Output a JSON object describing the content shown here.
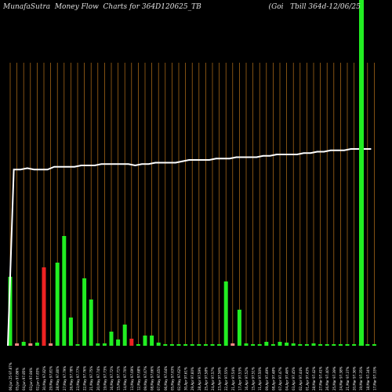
{
  "header": {
    "title": "MunafaSutra  Money Flow  Charts for 364D120625_TB                              (Goi   Tbill 364d-12/06/25                                            ) MunafaSutra.com"
  },
  "colors": {
    "background": "#000000",
    "grid": "#b8721a",
    "up": "#22ee22",
    "down": "#ee2222",
    "neutral": "#ff8888",
    "line": "#ffffff",
    "label": "#ffffff"
  },
  "chart_data": {
    "type": "bar",
    "title": "MunafaSutra  Money Flow  Charts for 364D120625_TB (Goi Tbill 364d-12/06/25) MunafaSutra.com",
    "categories": [
      "06,Jun 25 97.87%",
      "05,Jun 97.86%",
      "04,Jun 97.85%",
      "03,Jun 97.84%",
      "02,Jun 97.83%",
      "30,May 97.82%",
      "29,May 97.81%",
      "28,May 97.80%",
      "27,May 97.79%",
      "26,May 97.78%",
      "23,May 97.77%",
      "22,May 97.76%",
      "21,May 97.75%",
      "20,May 97.74%",
      "19,May 97.73%",
      "16,May 97.72%",
      "15,May 97.71%",
      "14,May 97.70%",
      "13,May 97.69%",
      "12,May 97.68%",
      "09,May 97.67%",
      "08,May 97.66%",
      "07,May 97.65%",
      "06,May 97.64%",
      "05,May 97.63%",
      "02,May 97.62%",
      "30,Apr 97.61%",
      "29,Apr 97.60%",
      "28,Apr 97.59%",
      "25,Apr 97.58%",
      "24,Apr 97.57%",
      "23,Apr 97.56%",
      "22,Apr 97.55%",
      "21,Apr 97.54%",
      "17,Apr 97.53%",
      "16,Apr 97.52%",
      "15,Apr 97.51%",
      "11,Apr 97.50%",
      "09,Apr 97.49%",
      "08,Apr 97.48%",
      "07,Apr 97.47%",
      "04,Apr 97.46%",
      "03,Apr 97.45%",
      "02,Apr 97.44%",
      "01,Apr 97.43%",
      "28,Mar 97.42%",
      "27,Mar 97.41%",
      "26,Mar 97.40%",
      "25,Mar 97.39%",
      "24,Mar 97.38%",
      "21,Mar 97.37%",
      "20,Mar 97.36%",
      "19,Mar 97.35%",
      "18,Mar 97.34%",
      "17,Mar 97.33%"
    ],
    "series": [
      {
        "values": [
          88,
          3,
          5,
          3,
          4,
          100,
          3,
          106,
          140,
          36,
          2,
          86,
          59,
          3,
          3,
          18,
          8,
          27,
          9,
          2,
          13,
          13,
          4,
          2,
          2,
          2,
          2,
          2,
          2,
          2,
          2,
          2,
          82,
          3,
          46,
          3,
          2,
          2,
          5,
          2,
          5,
          4,
          3,
          2,
          2,
          3,
          2,
          2,
          2,
          2,
          2,
          2,
          2,
          2,
          2
        ],
        "colors": [
          "up",
          "neutral",
          "up",
          "neutral",
          "up",
          "down",
          "neutral",
          "up",
          "up",
          "up",
          "up",
          "up",
          "up",
          "up",
          "up",
          "up",
          "up",
          "up",
          "down",
          "up",
          "up",
          "up",
          "up",
          "up",
          "up",
          "up",
          "up",
          "up",
          "up",
          "up",
          "up",
          "up",
          "up",
          "neutral",
          "up",
          "up",
          "up",
          "up",
          "up",
          "up",
          "up",
          "up",
          "up",
          "up",
          "up",
          "up",
          "up",
          "up",
          "up",
          "up",
          "up",
          "up",
          "up",
          "up",
          "up"
        ]
      },
      {
        "type": "line",
        "values": [
          null,
          1.05,
          1.05,
          1.06,
          1.05,
          1.05,
          1.05,
          1.07,
          1.07,
          1.07,
          1.07,
          1.08,
          1.08,
          1.08,
          1.09,
          1.09,
          1.09,
          1.09,
          1.09,
          1.08,
          1.09,
          1.09,
          1.1,
          1.1,
          1.1,
          1.1,
          1.11,
          1.12,
          1.12,
          1.12,
          1.12,
          1.13,
          1.13,
          1.13,
          1.14,
          1.14,
          1.14,
          1.14,
          1.15,
          1.15,
          1.16,
          1.16,
          1.16,
          1.16,
          1.17,
          1.17,
          1.18,
          1.18,
          1.19,
          1.19,
          1.19,
          1.2,
          1.2,
          1.2,
          1.2
        ]
      }
    ],
    "ylim": [
      0,
      180
    ],
    "grid": true
  }
}
